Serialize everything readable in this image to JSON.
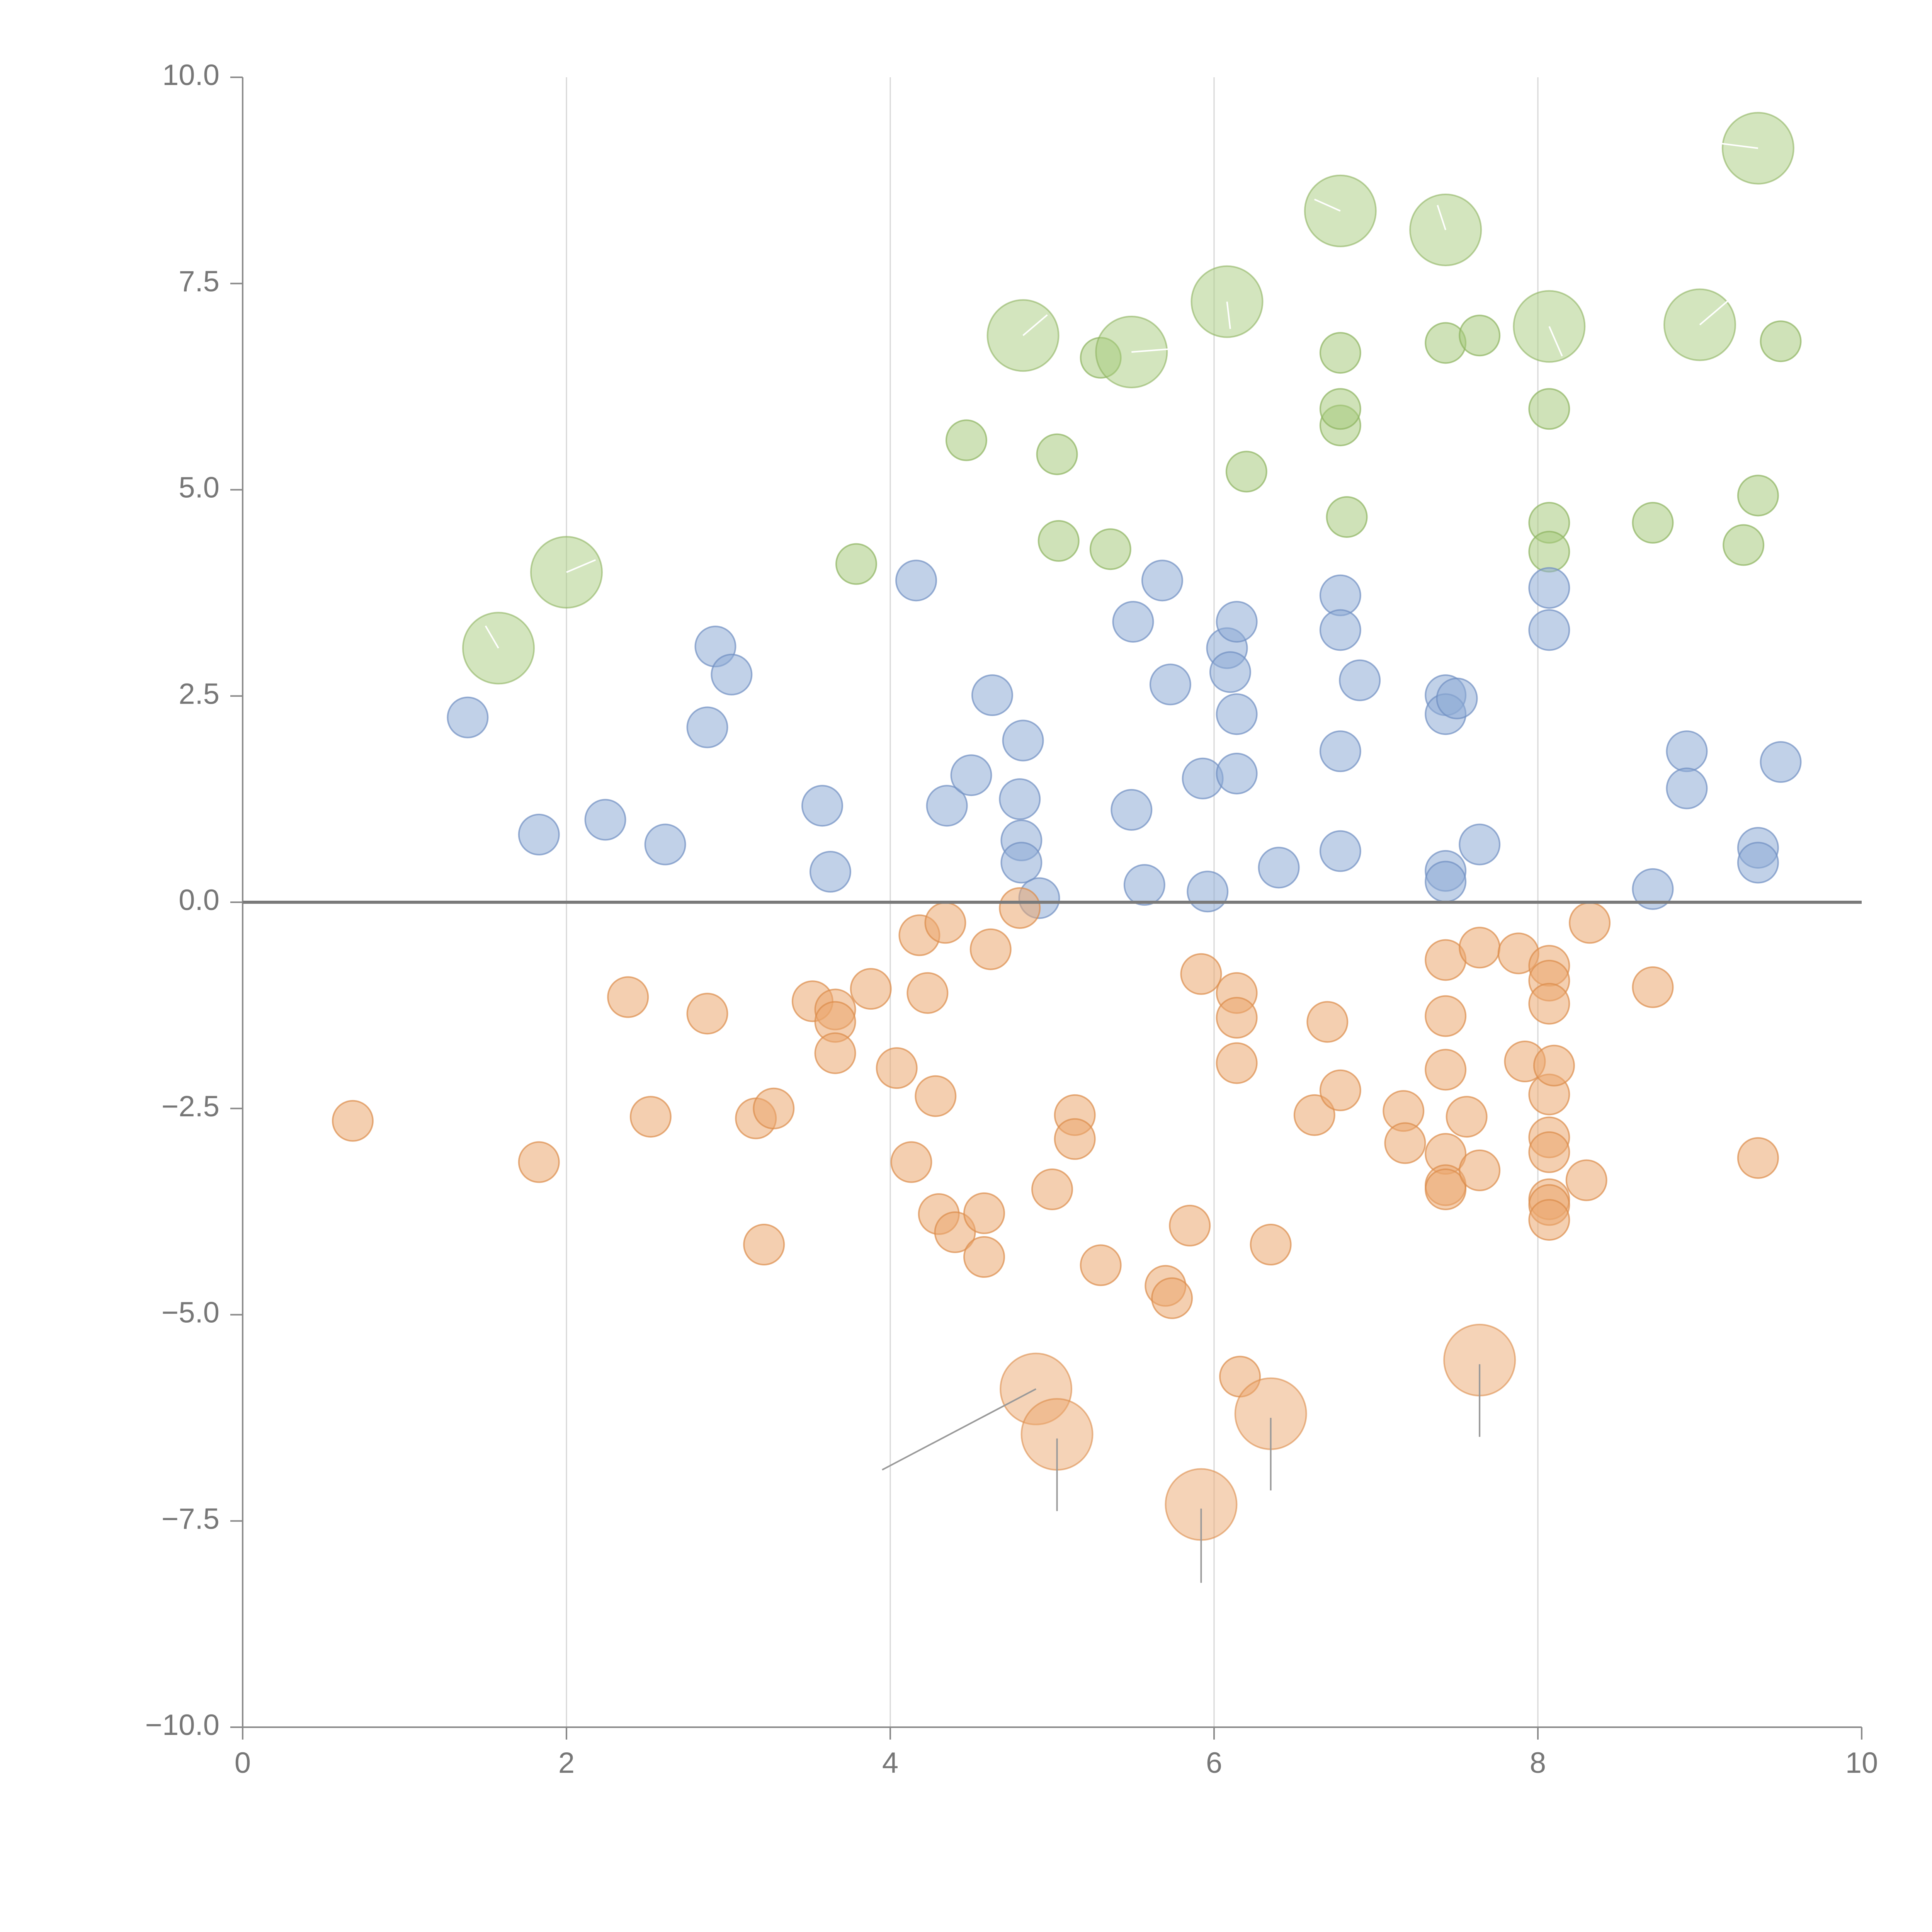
{
  "chart_data": {
    "type": "scatter",
    "title": "",
    "xlabel": "",
    "ylabel": "",
    "xlim": [
      0,
      10
    ],
    "ylim": [
      -10,
      10
    ],
    "x_ticks": [
      0,
      2,
      4,
      6,
      8,
      10
    ],
    "x_tick_labels": [
      "0",
      "2",
      "4",
      "6",
      "8",
      "10"
    ],
    "y_ticks": [
      -10,
      -7.5,
      -5,
      -2.5,
      0,
      2.5,
      5,
      7.5,
      10
    ],
    "y_tick_labels": [
      "−10.0",
      "−7.5",
      "−5.0",
      "−2.5",
      "0.0",
      "2.5",
      "5.0",
      "7.5",
      "10.0"
    ],
    "vertical_gridlines_at": [
      2,
      4,
      6,
      8
    ],
    "reference_line_y": 0,
    "series": [
      {
        "name": "green",
        "color": "#a8cb7e",
        "stroke": "#8db35f",
        "small": [
          [
            5.3,
            6.6
          ],
          [
            4.47,
            5.6
          ],
          [
            5.03,
            5.43
          ],
          [
            3.79,
            4.1
          ],
          [
            5.04,
            4.38
          ],
          [
            5.36,
            4.28
          ],
          [
            6.2,
            5.22
          ],
          [
            6.82,
            4.67
          ],
          [
            6.78,
            5.78
          ],
          [
            6.78,
            5.98
          ],
          [
            6.78,
            6.66
          ],
          [
            7.43,
            6.78
          ],
          [
            7.64,
            6.87
          ],
          [
            8.07,
            5.98
          ],
          [
            8.07,
            4.6
          ],
          [
            8.07,
            4.25
          ],
          [
            8.71,
            4.6
          ],
          [
            9.27,
            4.33
          ],
          [
            9.36,
            4.93
          ],
          [
            9.5,
            6.8
          ]
        ],
        "large": [
          [
            1.58,
            3.08
          ],
          [
            2.0,
            4.0
          ],
          [
            4.82,
            6.87
          ],
          [
            5.49,
            6.67
          ],
          [
            6.08,
            7.28
          ],
          [
            6.78,
            8.38
          ],
          [
            7.43,
            8.15
          ],
          [
            8.07,
            6.98
          ],
          [
            9.0,
            7.0
          ],
          [
            9.36,
            9.14
          ]
        ]
      },
      {
        "name": "blue",
        "color": "#8eabd6",
        "stroke": "#6f8fc2",
        "small": [
          [
            1.39,
            2.24
          ],
          [
            1.83,
            0.82
          ],
          [
            2.24,
            1.0
          ],
          [
            2.61,
            0.7
          ],
          [
            2.87,
            2.12
          ],
          [
            2.92,
            3.1
          ],
          [
            3.02,
            2.76
          ],
          [
            3.58,
            1.17
          ],
          [
            3.63,
            0.37
          ],
          [
            4.16,
            3.9
          ],
          [
            4.35,
            1.17
          ],
          [
            4.5,
            1.54
          ],
          [
            4.63,
            2.51
          ],
          [
            4.8,
            1.25
          ],
          [
            4.81,
            0.75
          ],
          [
            4.81,
            0.48
          ],
          [
            4.82,
            1.96
          ],
          [
            4.92,
            0.05
          ],
          [
            5.49,
            1.12
          ],
          [
            5.57,
            0.21
          ],
          [
            5.68,
            3.9
          ],
          [
            5.5,
            3.4
          ],
          [
            5.73,
            2.64
          ],
          [
            5.93,
            1.5
          ],
          [
            5.96,
            0.13
          ],
          [
            6.08,
            3.08
          ],
          [
            6.1,
            2.79
          ],
          [
            6.14,
            3.4
          ],
          [
            6.14,
            2.28
          ],
          [
            6.14,
            1.56
          ],
          [
            6.4,
            0.42
          ],
          [
            6.78,
            3.72
          ],
          [
            6.78,
            3.3
          ],
          [
            6.78,
            1.83
          ],
          [
            6.78,
            0.62
          ],
          [
            6.9,
            2.69
          ],
          [
            7.43,
            2.51
          ],
          [
            7.43,
            2.28
          ],
          [
            7.5,
            2.47
          ],
          [
            7.43,
            0.38
          ],
          [
            7.43,
            0.25
          ],
          [
            7.64,
            0.7
          ],
          [
            8.07,
            3.81
          ],
          [
            8.07,
            3.3
          ],
          [
            8.71,
            0.16
          ],
          [
            8.92,
            1.83
          ],
          [
            8.92,
            1.38
          ],
          [
            9.36,
            0.66
          ],
          [
            9.36,
            0.48
          ],
          [
            9.5,
            1.7
          ]
        ],
        "large": []
      },
      {
        "name": "orange",
        "color": "#eba86f",
        "stroke": "#dc8c4a",
        "small": [
          [
            0.68,
            -2.65
          ],
          [
            1.83,
            -3.15
          ],
          [
            2.38,
            -1.15
          ],
          [
            2.52,
            -2.6
          ],
          [
            2.87,
            -1.35
          ],
          [
            3.17,
            -2.62
          ],
          [
            3.22,
            -4.15
          ],
          [
            3.28,
            -2.5
          ],
          [
            3.52,
            -1.2
          ],
          [
            3.66,
            -1.3
          ],
          [
            3.66,
            -1.45
          ],
          [
            3.66,
            -1.83
          ],
          [
            3.88,
            -1.05
          ],
          [
            4.04,
            -2.01
          ],
          [
            4.13,
            -3.15
          ],
          [
            4.18,
            -0.4
          ],
          [
            4.23,
            -1.1
          ],
          [
            4.28,
            -2.35
          ],
          [
            4.3,
            -3.78
          ],
          [
            4.34,
            -0.25
          ],
          [
            4.4,
            -4.0
          ],
          [
            4.58,
            -3.77
          ],
          [
            4.58,
            -4.3
          ],
          [
            4.62,
            -0.57
          ],
          [
            4.8,
            -0.07
          ],
          [
            5.0,
            -3.48
          ],
          [
            5.14,
            -2.58
          ],
          [
            5.14,
            -2.87
          ],
          [
            5.3,
            -4.4
          ],
          [
            5.7,
            -4.65
          ],
          [
            5.74,
            -4.8
          ],
          [
            5.85,
            -3.92
          ],
          [
            5.92,
            -0.87
          ],
          [
            6.14,
            -1.1
          ],
          [
            6.14,
            -1.4
          ],
          [
            6.14,
            -1.95
          ],
          [
            6.16,
            -5.75
          ],
          [
            6.35,
            -4.15
          ],
          [
            6.62,
            -2.58
          ],
          [
            6.7,
            -1.45
          ],
          [
            6.78,
            -2.28
          ],
          [
            7.17,
            -2.53
          ],
          [
            7.18,
            -2.92
          ],
          [
            7.43,
            -0.7
          ],
          [
            7.43,
            -1.38
          ],
          [
            7.43,
            -2.03
          ],
          [
            7.43,
            -3.05
          ],
          [
            7.43,
            -3.43
          ],
          [
            7.43,
            -3.48
          ],
          [
            7.56,
            -2.6
          ],
          [
            7.64,
            -0.55
          ],
          [
            7.64,
            -3.25
          ],
          [
            7.88,
            -0.62
          ],
          [
            7.92,
            -1.93
          ],
          [
            8.07,
            -0.77
          ],
          [
            8.07,
            -0.95
          ],
          [
            8.07,
            -1.23
          ],
          [
            8.07,
            -2.33
          ],
          [
            8.07,
            -2.85
          ],
          [
            8.07,
            -3.03
          ],
          [
            8.07,
            -3.6
          ],
          [
            8.07,
            -3.67
          ],
          [
            8.07,
            -3.85
          ],
          [
            8.1,
            -1.98
          ],
          [
            8.3,
            -3.37
          ],
          [
            8.32,
            -0.25
          ],
          [
            8.71,
            -1.03
          ],
          [
            9.36,
            -3.1
          ]
        ],
        "large": [
          [
            4.9,
            -5.9
          ],
          [
            5.03,
            -6.45
          ],
          [
            5.92,
            -7.3
          ],
          [
            6.35,
            -6.2
          ],
          [
            7.64,
            -5.55
          ]
        ]
      }
    ],
    "leader_lines": [
      {
        "from": [
          4.9,
          -5.9
        ],
        "to": [
          3.95,
          -6.88
        ],
        "color": "#999999"
      },
      {
        "from": [
          5.03,
          -6.5
        ],
        "to": [
          5.03,
          -7.38
        ],
        "color": "#999999"
      },
      {
        "from": [
          5.92,
          -7.35
        ],
        "to": [
          5.92,
          -8.25
        ],
        "color": "#999999"
      },
      {
        "from": [
          6.35,
          -6.25
        ],
        "to": [
          6.35,
          -7.13
        ],
        "color": "#999999"
      },
      {
        "from": [
          7.64,
          -5.6
        ],
        "to": [
          7.64,
          -6.48
        ],
        "color": "#999999"
      },
      {
        "from": [
          1.58,
          3.08
        ],
        "to": [
          1.5,
          3.35
        ],
        "color": "#ffffff"
      },
      {
        "from": [
          2.0,
          4.0
        ],
        "to": [
          2.18,
          4.15
        ],
        "color": "#ffffff"
      },
      {
        "from": [
          4.82,
          6.87
        ],
        "to": [
          4.97,
          7.12
        ],
        "color": "#ffffff"
      },
      {
        "from": [
          5.49,
          6.67
        ],
        "to": [
          5.82,
          6.72
        ],
        "color": "#ffffff"
      },
      {
        "from": [
          6.08,
          7.28
        ],
        "to": [
          6.1,
          6.95
        ],
        "color": "#ffffff"
      },
      {
        "from": [
          6.78,
          8.38
        ],
        "to": [
          6.62,
          8.52
        ],
        "color": "#ffffff"
      },
      {
        "from": [
          7.43,
          8.15
        ],
        "to": [
          7.38,
          8.45
        ],
        "color": "#ffffff"
      },
      {
        "from": [
          8.07,
          6.98
        ],
        "to": [
          8.15,
          6.62
        ],
        "color": "#ffffff"
      },
      {
        "from": [
          9.0,
          7.0
        ],
        "to": [
          9.18,
          7.3
        ],
        "color": "#ffffff"
      },
      {
        "from": [
          9.36,
          9.14
        ],
        "to": [
          9.12,
          9.2
        ],
        "color": "#ffffff"
      }
    ]
  }
}
